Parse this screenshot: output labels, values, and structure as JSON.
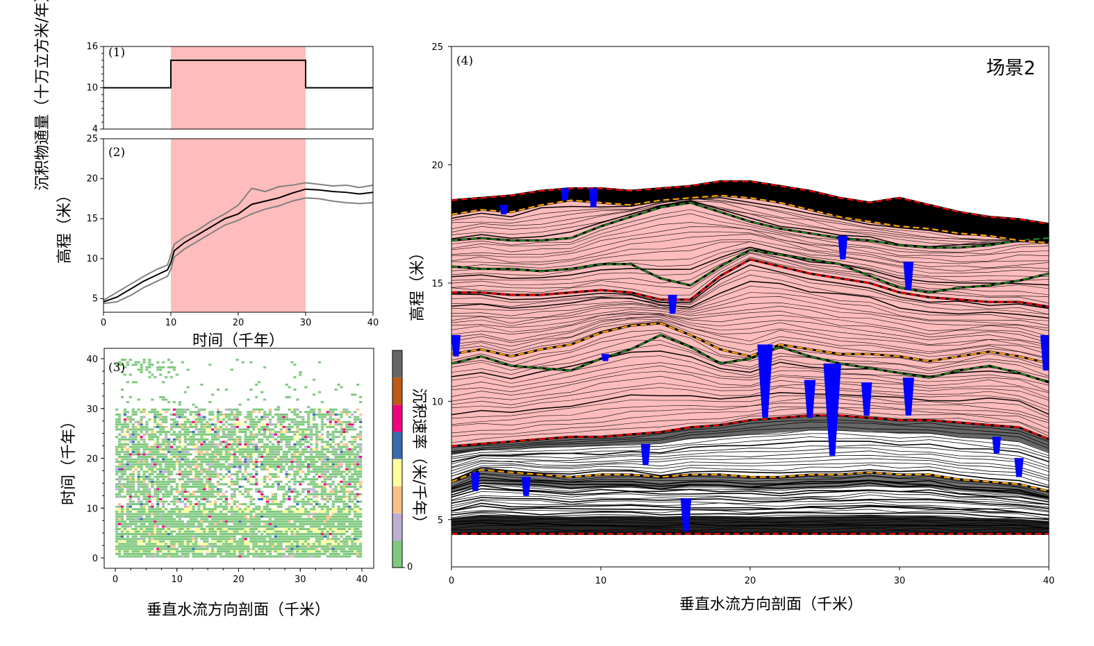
{
  "chart_data": [
    {
      "id": "panel1",
      "type": "line",
      "panel_label": "(1)",
      "title": "",
      "ylabel": "沉积物通量（十万立方米/年）",
      "xlim": [
        0,
        40
      ],
      "ylim": [
        4,
        16
      ],
      "yticks": [
        4,
        10,
        16
      ],
      "highlight": {
        "x0": 10,
        "x1": 30,
        "color": "#ffbcbc"
      },
      "series": [
        {
          "color": "#000000",
          "x": [
            0,
            10,
            10,
            30,
            30,
            40
          ],
          "y": [
            10,
            10,
            14,
            14,
            10,
            10
          ]
        }
      ]
    },
    {
      "id": "panel2",
      "type": "line",
      "panel_label": "(2)",
      "title": "",
      "xlabel": "时间（千年）",
      "ylabel": "高程（米）",
      "xlim": [
        0,
        40
      ],
      "ylim": [
        3.3,
        25
      ],
      "xticks": [
        0,
        10,
        20,
        30,
        40
      ],
      "yticks": [
        5,
        10,
        15,
        20,
        25
      ],
      "highlight": {
        "x0": 10,
        "x1": 30,
        "color": "#ffbcbc"
      },
      "series": [
        {
          "color": "#000000",
          "x": [
            0,
            2,
            4,
            6,
            8,
            9.5,
            10,
            10.5,
            12,
            14,
            16,
            18,
            20,
            22,
            24,
            26,
            28,
            30,
            32,
            34,
            36,
            38,
            40
          ],
          "y": [
            4.6,
            5.2,
            6.2,
            7.2,
            8.0,
            8.6,
            9.5,
            11.0,
            12.0,
            13.0,
            14.0,
            15.0,
            15.6,
            16.8,
            17.2,
            17.6,
            18.2,
            18.7,
            18.6,
            18.4,
            18.3,
            18.1,
            18.3
          ]
        },
        {
          "color": "#808080",
          "x": [
            0,
            2,
            4,
            6,
            8,
            9.5,
            10,
            10.5,
            12,
            14,
            16,
            18,
            20,
            22,
            24,
            26,
            28,
            30,
            32,
            34,
            36,
            38,
            40
          ],
          "y": [
            4.8,
            5.8,
            6.8,
            7.8,
            8.7,
            9.2,
            10.5,
            11.8,
            12.7,
            13.6,
            14.7,
            15.6,
            16.7,
            18.8,
            18.4,
            19.0,
            19.2,
            19.5,
            19.3,
            19.1,
            19.2,
            18.9,
            19.2
          ]
        },
        {
          "color": "#808080",
          "x": [
            0,
            2,
            4,
            6,
            8,
            9.5,
            10,
            10.5,
            12,
            14,
            16,
            18,
            20,
            22,
            24,
            26,
            28,
            30,
            32,
            34,
            36,
            38,
            40
          ],
          "y": [
            4.4,
            4.6,
            5.4,
            6.4,
            7.2,
            7.8,
            8.7,
            10.2,
            11.2,
            12.2,
            13.2,
            14.2,
            14.8,
            15.6,
            16.2,
            16.6,
            17.2,
            17.6,
            17.5,
            17.2,
            17.0,
            16.9,
            17.0
          ]
        }
      ]
    },
    {
      "id": "panel3",
      "type": "heatmap",
      "panel_label": "(3)",
      "title": "",
      "xlabel": "垂直水流方向剖面（千米）",
      "ylabel": "时间（千年）",
      "xlim": [
        0,
        40
      ],
      "ylim": [
        0,
        40
      ],
      "xticks": [
        0,
        10,
        20,
        30,
        40
      ],
      "yticks": [
        0,
        10,
        20,
        30,
        40
      ],
      "colorbar": {
        "label": "沉积速率（米/千年）",
        "tick_labels": [
          "0"
        ],
        "colors": [
          "#7fc97f",
          "#beaed4",
          "#fdc086",
          "#ffff99",
          "#386cb0",
          "#f0027f",
          "#bf5b17",
          "#666666"
        ]
      }
    },
    {
      "id": "panel4",
      "type": "line",
      "panel_label": "(4)",
      "title": "场景2",
      "xlabel": "垂直水流方向剖面（千米）",
      "ylabel": "高程（米）",
      "xlim": [
        0,
        40
      ],
      "ylim": [
        3,
        25
      ],
      "xticks": [
        0,
        10,
        20,
        30,
        40
      ],
      "yticks": [
        5,
        10,
        15,
        20,
        25
      ],
      "colors": {
        "strata": "#000000",
        "fill_high_flux": "#ffbcbc",
        "channel": "#0000ff",
        "red": "#ff0000",
        "orange": "#ffa500",
        "green": "#228b22"
      },
      "surfaces": {
        "x": [
          0,
          2,
          4,
          6,
          8,
          10,
          12,
          14,
          16,
          18,
          20,
          22,
          24,
          26,
          28,
          30,
          32,
          34,
          36,
          38,
          40
        ],
        "base": [
          4.4,
          4.4,
          4.4,
          4.4,
          4.4,
          4.4,
          4.4,
          4.4,
          4.4,
          4.4,
          4.4,
          4.4,
          4.4,
          4.4,
          4.4,
          4.4,
          4.4,
          4.4,
          4.4,
          4.4,
          4.4
        ],
        "mid_orange": [
          6.6,
          7.1,
          7.0,
          6.9,
          6.8,
          6.9,
          6.9,
          6.8,
          6.9,
          6.9,
          6.8,
          6.8,
          6.9,
          6.9,
          7.0,
          6.9,
          6.9,
          6.7,
          6.6,
          6.5,
          6.2
        ],
        "red_low": [
          8.1,
          8.2,
          8.3,
          8.4,
          8.5,
          8.5,
          8.6,
          8.7,
          8.9,
          9.0,
          9.2,
          9.3,
          9.4,
          9.4,
          9.3,
          9.2,
          9.2,
          9.1,
          9.0,
          8.9,
          8.4
        ],
        "green_1": [
          11.6,
          11.9,
          11.5,
          11.4,
          11.3,
          11.8,
          12.2,
          12.8,
          12.3,
          11.6,
          11.8,
          12.3,
          11.9,
          11.6,
          11.4,
          11.2,
          11.0,
          11.3,
          11.5,
          11.2,
          10.8
        ],
        "orange_1": [
          12.0,
          12.2,
          11.9,
          12.2,
          12.4,
          12.9,
          13.2,
          13.3,
          12.8,
          12.2,
          11.9,
          12.4,
          12.2,
          12.0,
          12.0,
          11.9,
          11.7,
          11.9,
          12.1,
          11.9,
          11.6
        ],
        "red_mid": [
          14.6,
          14.6,
          14.5,
          14.5,
          14.6,
          14.7,
          14.6,
          14.3,
          14.3,
          15.3,
          16.0,
          15.7,
          15.4,
          15.2,
          15.0,
          14.6,
          14.4,
          14.3,
          14.2,
          14.2,
          14.0
        ],
        "green_2": [
          15.7,
          15.6,
          15.6,
          15.5,
          15.6,
          15.8,
          15.8,
          15.2,
          14.9,
          15.7,
          16.4,
          16.2,
          16.0,
          15.8,
          15.3,
          14.8,
          14.6,
          14.8,
          14.9,
          15.1,
          15.4
        ],
        "green_3": [
          16.8,
          16.9,
          16.8,
          16.8,
          16.9,
          17.4,
          17.8,
          18.2,
          18.4,
          18.0,
          17.6,
          17.3,
          17.1,
          16.9,
          16.8,
          16.6,
          16.5,
          16.5,
          16.6,
          16.8,
          16.9
        ],
        "orange_top": [
          17.9,
          18.1,
          18.0,
          18.3,
          18.5,
          18.4,
          18.3,
          18.5,
          18.6,
          18.7,
          18.6,
          18.4,
          18.1,
          17.8,
          17.6,
          17.4,
          17.3,
          17.1,
          17.0,
          16.8,
          16.7
        ],
        "top": [
          18.5,
          18.6,
          18.7,
          18.9,
          19.0,
          19.0,
          18.9,
          19.0,
          19.1,
          19.3,
          19.3,
          19.1,
          18.9,
          18.6,
          18.4,
          18.6,
          18.3,
          18.0,
          17.8,
          17.7,
          17.5
        ]
      },
      "channels": [
        {
          "x": 0.3,
          "y_top": 12.8,
          "y_bot": 11.9
        },
        {
          "x": 1.6,
          "y_top": 7.0,
          "y_bot": 6.2
        },
        {
          "x": 3.5,
          "y_top": 18.3,
          "y_bot": 17.9
        },
        {
          "x": 5.0,
          "y_top": 6.8,
          "y_bot": 6.0
        },
        {
          "x": 7.6,
          "y_top": 19.0,
          "y_bot": 18.5
        },
        {
          "x": 9.5,
          "y_top": 19.0,
          "y_bot": 18.2
        },
        {
          "x": 10.3,
          "y_top": 12.0,
          "y_bot": 11.7
        },
        {
          "x": 13.0,
          "y_top": 8.2,
          "y_bot": 7.3
        },
        {
          "x": 14.8,
          "y_top": 14.5,
          "y_bot": 13.7
        },
        {
          "x": 15.7,
          "y_top": 5.9,
          "y_bot": 4.5
        },
        {
          "x": 21.0,
          "y_top": 12.4,
          "y_bot": 9.3
        },
        {
          "x": 24.0,
          "y_top": 10.9,
          "y_bot": 9.3
        },
        {
          "x": 25.5,
          "y_top": 11.6,
          "y_bot": 7.7
        },
        {
          "x": 26.2,
          "y_top": 17.0,
          "y_bot": 16.0
        },
        {
          "x": 27.8,
          "y_top": 10.8,
          "y_bot": 9.4
        },
        {
          "x": 30.6,
          "y_top": 15.9,
          "y_bot": 14.7
        },
        {
          "x": 30.6,
          "y_top": 11.0,
          "y_bot": 9.4
        },
        {
          "x": 36.5,
          "y_top": 8.5,
          "y_bot": 7.8
        },
        {
          "x": 39.8,
          "y_top": 12.8,
          "y_bot": 11.3
        },
        {
          "x": 38.0,
          "y_top": 7.6,
          "y_bot": 6.8
        }
      ]
    }
  ]
}
